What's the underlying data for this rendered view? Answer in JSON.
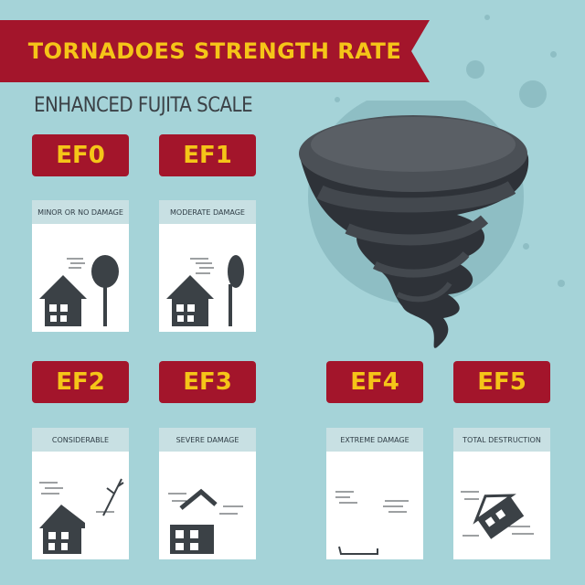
{
  "title": "TORNADOES STRENGTH RATE",
  "subtitle": "ENHANCED FUJITA SCALE",
  "levels": [
    {
      "code": "EF0",
      "label": "MINOR OR NO DAMAGE"
    },
    {
      "code": "EF1",
      "label": "MODERATE DAMAGE"
    },
    {
      "code": "EF2",
      "label": "CONSIDERABLE"
    },
    {
      "code": "EF3",
      "label": "SEVERE DAMAGE"
    },
    {
      "code": "EF4",
      "label": "EXTREME DAMAGE"
    },
    {
      "code": "EF5",
      "label": "TOTAL DESTRUCTION"
    }
  ],
  "colors": {
    "background": "#a5d3d8",
    "banner": "#a3152b",
    "accent": "#f5c518",
    "dark": "#3b4146"
  }
}
